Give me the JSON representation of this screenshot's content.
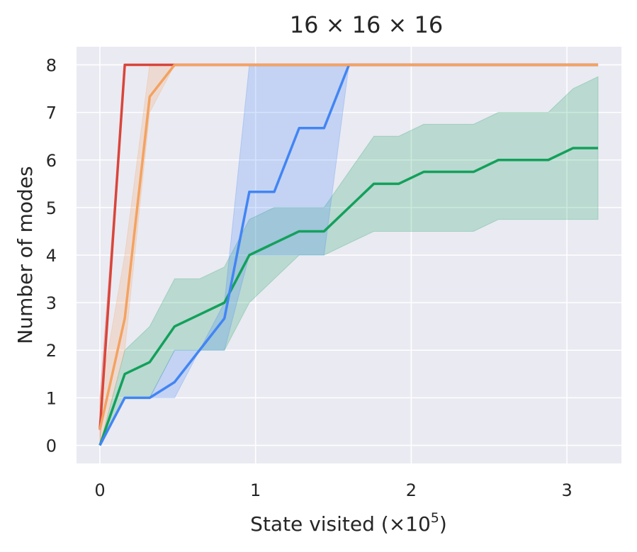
{
  "chart_data": {
    "type": "line",
    "title": "16 × 16 × 16",
    "xlabel": {
      "text": "State visited (×10",
      "sup": "5",
      "suffix": ")"
    },
    "ylabel": "Number of modes",
    "xlim": [
      -0.15,
      3.35
    ],
    "ylim": [
      -0.38,
      8.38
    ],
    "xticks": [
      0,
      1,
      2,
      3
    ],
    "xtick_labels": [
      "0",
      "1",
      "2",
      "3"
    ],
    "yticks": [
      0,
      1,
      2,
      3,
      4,
      5,
      6,
      7,
      8
    ],
    "ytick_labels": [
      "0",
      "1",
      "2",
      "3",
      "4",
      "5",
      "6",
      "7",
      "8"
    ],
    "grid": true,
    "background": "#eaeaf2",
    "series": [
      {
        "color": "#13a05b",
        "x": [
          0,
          0.16,
          0.32,
          0.48,
          0.64,
          0.8,
          0.96,
          1.12,
          1.28,
          1.44,
          1.6,
          1.76,
          1.92,
          2.08,
          2.24,
          2.4,
          2.56,
          2.72,
          2.88,
          3.04,
          3.2
        ],
        "y": [
          0,
          1.5,
          1.75,
          2.5,
          2.75,
          3.0,
          4.0,
          4.25,
          4.5,
          4.5,
          5.0,
          5.5,
          5.5,
          5.75,
          5.75,
          5.75,
          6.0,
          6.0,
          6.0,
          6.25,
          6.25
        ],
        "lower": [
          0,
          1.0,
          1.0,
          2.0,
          2.0,
          2.0,
          3.0,
          3.5,
          4.0,
          4.0,
          4.25,
          4.5,
          4.5,
          4.5,
          4.5,
          4.5,
          4.75,
          4.75,
          4.75,
          4.75,
          4.75
        ],
        "upper": [
          0,
          2.0,
          2.5,
          3.5,
          3.5,
          3.75,
          4.75,
          5.0,
          5.0,
          5.0,
          5.75,
          6.5,
          6.5,
          6.75,
          6.75,
          6.75,
          7.0,
          7.0,
          7.0,
          7.5,
          7.75
        ]
      },
      {
        "color": "#4285f4",
        "x": [
          0,
          0.16,
          0.32,
          0.48,
          0.64,
          0.8,
          0.96,
          1.12,
          1.28,
          1.44,
          1.6,
          1.76,
          1.92,
          2.08,
          2.24,
          2.4,
          2.56,
          2.72,
          2.88,
          3.04,
          3.2
        ],
        "y": [
          0,
          1.0,
          1.0,
          1.33,
          2.0,
          2.67,
          5.33,
          5.33,
          6.67,
          6.67,
          8.0,
          8.0,
          8.0,
          8.0,
          8.0,
          8.0,
          8.0,
          8.0,
          8.0,
          8.0,
          8.0
        ],
        "lower": [
          0,
          1.0,
          1.0,
          1.0,
          2.0,
          2.0,
          4.0,
          4.0,
          4.0,
          4.0,
          8.0,
          8.0,
          8.0,
          8.0,
          8.0,
          8.0,
          8.0,
          8.0,
          8.0,
          8.0,
          8.0
        ],
        "upper": [
          0,
          1.0,
          1.0,
          2.0,
          2.0,
          3.0,
          8.0,
          8.0,
          8.0,
          8.0,
          8.0,
          8.0,
          8.0,
          8.0,
          8.0,
          8.0,
          8.0,
          8.0,
          8.0,
          8.0,
          8.0
        ]
      },
      {
        "color": "#d9453a",
        "x": [
          0,
          0.16,
          0.32,
          0.48,
          0.64,
          0.8,
          0.96,
          1.12,
          1.28,
          1.44,
          1.6,
          1.76,
          1.92,
          2.08,
          2.24,
          2.4,
          2.56,
          2.72,
          2.88,
          3.04,
          3.2
        ],
        "y": [
          0.33,
          8,
          8,
          8,
          8,
          8,
          8,
          8,
          8,
          8,
          8,
          8,
          8,
          8,
          8,
          8,
          8,
          8,
          8,
          8,
          8
        ],
        "lower": [
          0,
          8,
          8,
          8,
          8,
          8,
          8,
          8,
          8,
          8,
          8,
          8,
          8,
          8,
          8,
          8,
          8,
          8,
          8,
          8,
          8
        ],
        "upper": [
          1,
          8,
          8,
          8,
          8,
          8,
          8,
          8,
          8,
          8,
          8,
          8,
          8,
          8,
          8,
          8,
          8,
          8,
          8,
          8,
          8
        ]
      },
      {
        "color": "#f4a261",
        "x": [
          0,
          0.16,
          0.32,
          0.48,
          0.64,
          0.8,
          0.96,
          1.12,
          1.28,
          1.44,
          1.6,
          1.76,
          1.92,
          2.08,
          2.24,
          2.4,
          2.56,
          2.72,
          2.88,
          3.04,
          3.2
        ],
        "y": [
          0.33,
          2.67,
          7.33,
          8,
          8,
          8,
          8,
          8,
          8,
          8,
          8,
          8,
          8,
          8,
          8,
          8,
          8,
          8,
          8,
          8,
          8
        ],
        "lower": [
          0,
          2.0,
          7.0,
          8,
          8,
          8,
          8,
          8,
          8,
          8,
          8,
          8,
          8,
          8,
          8,
          8,
          8,
          8,
          8,
          8,
          8
        ],
        "upper": [
          1,
          4.0,
          8.0,
          8,
          8,
          8,
          8,
          8,
          8,
          8,
          8,
          8,
          8,
          8,
          8,
          8,
          8,
          8,
          8,
          8,
          8
        ]
      }
    ]
  }
}
